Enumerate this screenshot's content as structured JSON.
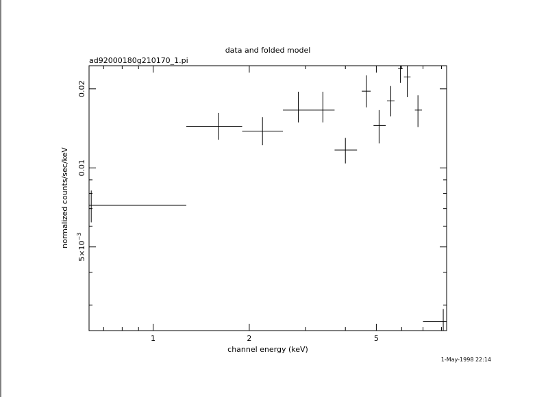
{
  "chart_data": {
    "type": "scatter",
    "title": "data and folded model",
    "subtitle": "ad92000180g210170_1.pi",
    "xlabel": "channel energy (keV)",
    "ylabel": "normalized counts/sec/keV",
    "x_scale": "log",
    "y_scale": "log",
    "xlim": [
      0.63,
      8.3
    ],
    "ylim": [
      0.0024,
      0.0245
    ],
    "x_ticks": [
      {
        "value": 1,
        "label": "1"
      },
      {
        "value": 2,
        "label": "2"
      },
      {
        "value": 5,
        "label": "5"
      }
    ],
    "y_ticks": [
      {
        "value": 0.005,
        "label_base": "5×10",
        "label_exp": "−3"
      },
      {
        "value": 0.01,
        "label": "0.01"
      },
      {
        "value": 0.02,
        "label": "0.02"
      }
    ],
    "points": [
      {
        "x": 0.64,
        "xlo": 0.63,
        "xhi": 1.27,
        "y": 0.0072,
        "ylo": 0.0062,
        "yhi": 0.0082
      },
      {
        "x": 1.6,
        "xlo": 1.27,
        "xhi": 1.9,
        "y": 0.0144,
        "ylo": 0.0128,
        "yhi": 0.0162
      },
      {
        "x": 2.2,
        "xlo": 1.9,
        "xhi": 2.55,
        "y": 0.0138,
        "ylo": 0.0122,
        "yhi": 0.0156
      },
      {
        "x": 2.85,
        "xlo": 2.55,
        "xhi": 3.2,
        "y": 0.0166,
        "ylo": 0.0149,
        "yhi": 0.0195
      },
      {
        "x": 3.4,
        "xlo": 3.2,
        "xhi": 3.7,
        "y": 0.0166,
        "ylo": 0.0149,
        "yhi": 0.0195
      },
      {
        "x": 4.0,
        "xlo": 3.7,
        "xhi": 4.35,
        "y": 0.0117,
        "ylo": 0.0104,
        "yhi": 0.013
      },
      {
        "x": 4.65,
        "xlo": 4.5,
        "xhi": 4.8,
        "y": 0.0196,
        "ylo": 0.017,
        "yhi": 0.0225
      },
      {
        "x": 5.1,
        "xlo": 4.9,
        "xhi": 5.35,
        "y": 0.0145,
        "ylo": 0.0124,
        "yhi": 0.0166
      },
      {
        "x": 5.55,
        "xlo": 5.4,
        "xhi": 5.7,
        "y": 0.018,
        "ylo": 0.0157,
        "yhi": 0.0205
      },
      {
        "x": 5.95,
        "xlo": 5.85,
        "xhi": 6.05,
        "y": 0.0239,
        "ylo": 0.0211,
        "yhi": 0.0245
      },
      {
        "x": 6.25,
        "xlo": 6.1,
        "xhi": 6.4,
        "y": 0.0222,
        "ylo": 0.0186,
        "yhi": 0.0245
      },
      {
        "x": 6.75,
        "xlo": 6.6,
        "xhi": 6.95,
        "y": 0.0166,
        "ylo": 0.0143,
        "yhi": 0.0189
      },
      {
        "x": 8.1,
        "xlo": 7.0,
        "xhi": 8.3,
        "y": 0.0026,
        "ylo": 0.0024,
        "yhi": 0.0029
      }
    ],
    "grid": false,
    "legend": "none"
  },
  "timestamp": "1-May-1998 22:14"
}
